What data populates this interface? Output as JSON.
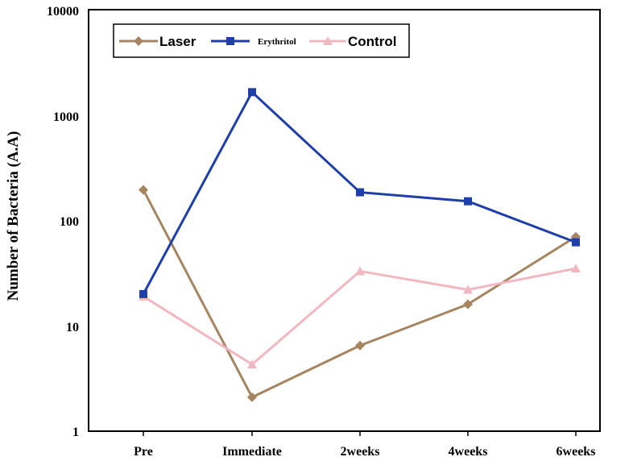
{
  "chart_data": {
    "type": "line",
    "title": "",
    "xlabel": "",
    "ylabel": "Number of Bacteria (A.A)",
    "yscale": "log",
    "ylim": [
      1,
      10000
    ],
    "yticks": [
      "1",
      "10",
      "100",
      "1000",
      "10000"
    ],
    "ytick_values": [
      1,
      10,
      100,
      1000,
      10000
    ],
    "categories": [
      "Pre",
      "Immediate",
      "2weeks",
      "4weeks",
      "6weeks"
    ],
    "legend_position": "top-left",
    "series": [
      {
        "name": "Laser",
        "color": "#a68560",
        "marker": "diamond",
        "values": [
          195,
          2.1,
          6.5,
          16,
          70
        ]
      },
      {
        "name": "Erythritol",
        "color": "#1f3fa8",
        "marker": "square",
        "values": [
          20,
          1650,
          185,
          152,
          62
        ]
      },
      {
        "name": "Control",
        "color": "#f2b8c2",
        "marker": "triangle",
        "values": [
          19,
          4.3,
          33,
          22,
          35
        ]
      }
    ]
  }
}
